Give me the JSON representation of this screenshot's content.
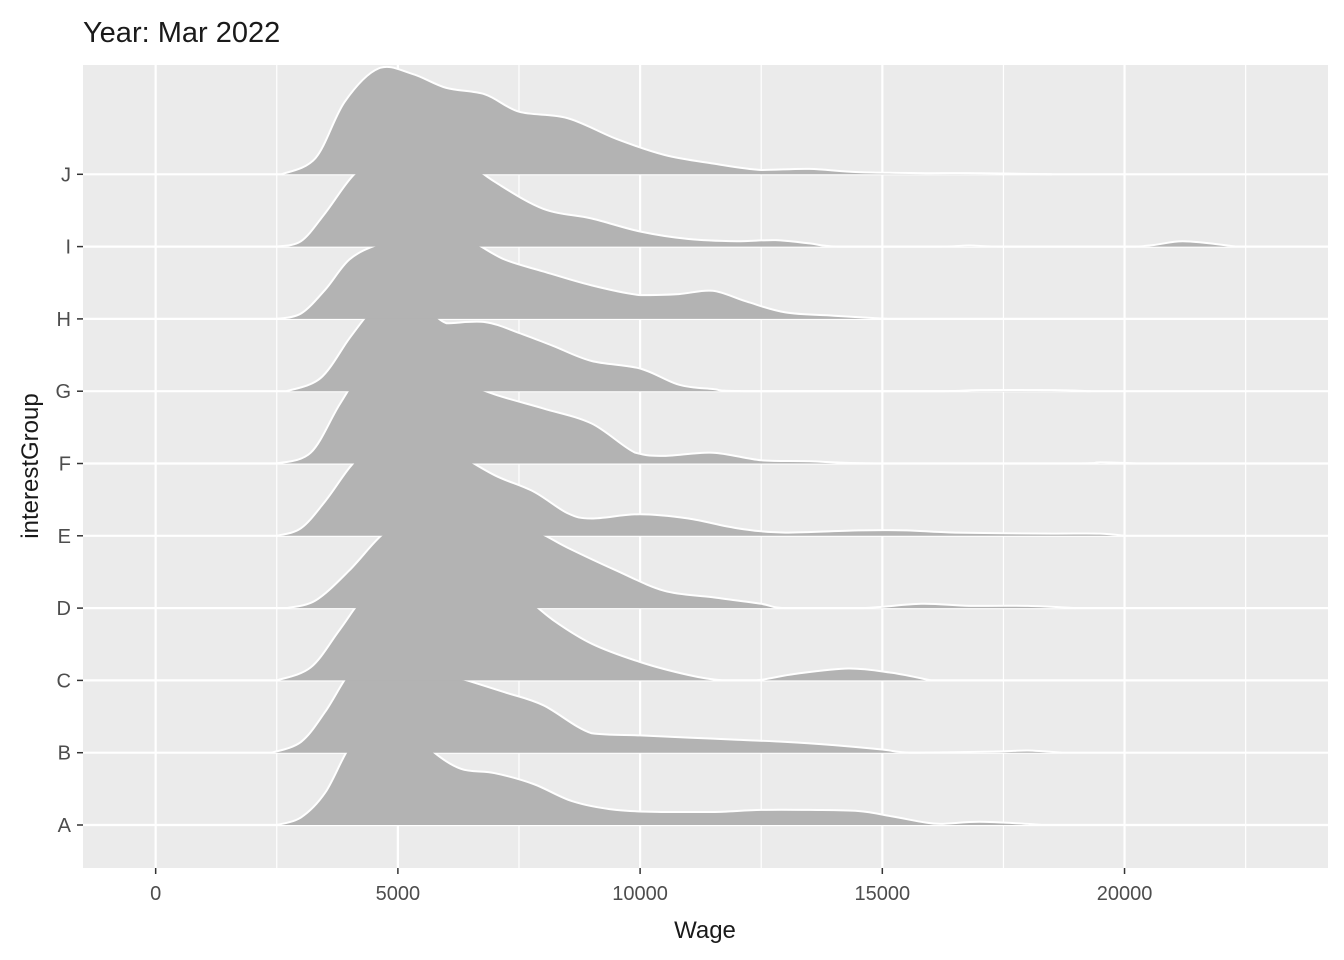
{
  "chart_data": {
    "type": "ridgeline",
    "title": "Year: Mar 2022",
    "xlabel": "Wage",
    "ylabel": "interestGroup",
    "xlim": [
      -1500,
      24200
    ],
    "x_ticks": [
      0,
      5000,
      10000,
      15000,
      20000
    ],
    "x_tick_labels": [
      "0",
      "5000",
      "10000",
      "15000",
      "20000"
    ],
    "grid": true,
    "fill_color": "#b3b3b3",
    "outline_color": "#ffffff",
    "panel_color": "#ebebeb",
    "categories": [
      "A",
      "B",
      "C",
      "D",
      "E",
      "F",
      "G",
      "H",
      "I",
      "J"
    ],
    "series": [
      {
        "name": "A",
        "points": [
          [
            2500,
            0
          ],
          [
            3000,
            0.07
          ],
          [
            3500,
            0.3
          ],
          [
            4000,
            0.72
          ],
          [
            4500,
            0.95
          ],
          [
            4800,
            1.0
          ],
          [
            5200,
            0.94
          ],
          [
            5700,
            0.69
          ],
          [
            6300,
            0.52
          ],
          [
            7000,
            0.48
          ],
          [
            7800,
            0.38
          ],
          [
            8600,
            0.22
          ],
          [
            9500,
            0.14
          ],
          [
            10500,
            0.12
          ],
          [
            11500,
            0.12
          ],
          [
            12500,
            0.14
          ],
          [
            13500,
            0.14
          ],
          [
            14500,
            0.13
          ],
          [
            15200,
            0.08
          ],
          [
            15800,
            0.03
          ],
          [
            16200,
            0.01
          ],
          [
            17000,
            0.03
          ],
          [
            18000,
            0.01
          ],
          [
            18300,
            0
          ]
        ]
      },
      {
        "name": "B",
        "points": [
          [
            2400,
            0
          ],
          [
            3000,
            0.1
          ],
          [
            3500,
            0.38
          ],
          [
            4000,
            0.74
          ],
          [
            4500,
            0.97
          ],
          [
            4800,
            1.0
          ],
          [
            5200,
            0.94
          ],
          [
            5800,
            0.76
          ],
          [
            6500,
            0.66
          ],
          [
            7200,
            0.56
          ],
          [
            8000,
            0.44
          ],
          [
            9000,
            0.18
          ],
          [
            10000,
            0.16
          ],
          [
            11000,
            0.14
          ],
          [
            12000,
            0.12
          ],
          [
            13000,
            0.1
          ],
          [
            14000,
            0.07
          ],
          [
            15000,
            0.03
          ],
          [
            15600,
            0
          ],
          [
            17300,
            0.01
          ],
          [
            18000,
            0.02
          ],
          [
            18700,
            0
          ]
        ]
      },
      {
        "name": "C",
        "points": [
          [
            2500,
            0
          ],
          [
            3200,
            0.12
          ],
          [
            3800,
            0.47
          ],
          [
            4300,
            0.77
          ],
          [
            4800,
            0.89
          ],
          [
            5500,
            0.89
          ],
          [
            6500,
            0.86
          ],
          [
            7000,
            0.87
          ],
          [
            7500,
            0.81
          ],
          [
            8200,
            0.56
          ],
          [
            9000,
            0.34
          ],
          [
            10000,
            0.17
          ],
          [
            11000,
            0.05
          ],
          [
            11700,
            0
          ],
          [
            12400,
            0
          ],
          [
            13200,
            0.06
          ],
          [
            14300,
            0.11
          ],
          [
            15200,
            0.07
          ],
          [
            16000,
            0
          ]
        ]
      },
      {
        "name": "D",
        "points": [
          [
            2700,
            0
          ],
          [
            3300,
            0.07
          ],
          [
            4000,
            0.35
          ],
          [
            4700,
            0.69
          ],
          [
            5300,
            0.83
          ],
          [
            6000,
            0.79
          ],
          [
            7000,
            0.79
          ],
          [
            7800,
            0.72
          ],
          [
            8500,
            0.56
          ],
          [
            9500,
            0.35
          ],
          [
            10500,
            0.16
          ],
          [
            11500,
            0.1
          ],
          [
            12500,
            0.04
          ],
          [
            13000,
            0
          ],
          [
            14600,
            0
          ],
          [
            15800,
            0.04
          ],
          [
            16800,
            0.02
          ],
          [
            18000,
            0.02
          ],
          [
            19000,
            0
          ]
        ]
      },
      {
        "name": "E",
        "points": [
          [
            2500,
            0
          ],
          [
            3000,
            0.07
          ],
          [
            3500,
            0.32
          ],
          [
            4000,
            0.63
          ],
          [
            4500,
            0.87
          ],
          [
            5000,
            0.97
          ],
          [
            5500,
            0.96
          ],
          [
            6200,
            0.77
          ],
          [
            7000,
            0.56
          ],
          [
            7800,
            0.41
          ],
          [
            8500,
            0.21
          ],
          [
            9000,
            0.16
          ],
          [
            10000,
            0.2
          ],
          [
            11000,
            0.16
          ],
          [
            12000,
            0.07
          ],
          [
            13000,
            0.03
          ],
          [
            14500,
            0.05
          ],
          [
            15500,
            0.05
          ],
          [
            16500,
            0.03
          ],
          [
            18500,
            0.02
          ],
          [
            19500,
            0.02
          ],
          [
            20000,
            0
          ]
        ]
      },
      {
        "name": "F",
        "points": [
          [
            2500,
            0
          ],
          [
            3200,
            0.1
          ],
          [
            3800,
            0.55
          ],
          [
            4400,
            0.95
          ],
          [
            4800,
            0.98
          ],
          [
            5200,
            0.94
          ],
          [
            6000,
            0.81
          ],
          [
            7000,
            0.64
          ],
          [
            8000,
            0.51
          ],
          [
            9000,
            0.37
          ],
          [
            9900,
            0.1
          ],
          [
            10500,
            0.07
          ],
          [
            11500,
            0.1
          ],
          [
            12500,
            0.03
          ],
          [
            13500,
            0.02
          ],
          [
            14900,
            0
          ],
          [
            18900,
            0
          ],
          [
            19500,
            0.01
          ],
          [
            20300,
            0
          ]
        ]
      },
      {
        "name": "G",
        "points": [
          [
            2700,
            0
          ],
          [
            3400,
            0.12
          ],
          [
            4000,
            0.49
          ],
          [
            4500,
            0.78
          ],
          [
            4800,
            0.9
          ],
          [
            5400,
            0.86
          ],
          [
            6000,
            0.63
          ],
          [
            6800,
            0.64
          ],
          [
            7500,
            0.54
          ],
          [
            8200,
            0.42
          ],
          [
            9000,
            0.28
          ],
          [
            10000,
            0.21
          ],
          [
            10800,
            0.06
          ],
          [
            11500,
            0.02
          ],
          [
            12200,
            0
          ],
          [
            16100,
            0
          ],
          [
            17000,
            0.01
          ],
          [
            18500,
            0.01
          ],
          [
            19300,
            0
          ]
        ]
      },
      {
        "name": "H",
        "points": [
          [
            2500,
            0
          ],
          [
            3000,
            0.05
          ],
          [
            3500,
            0.27
          ],
          [
            4000,
            0.55
          ],
          [
            4600,
            0.69
          ],
          [
            5200,
            0.74
          ],
          [
            5900,
            0.78
          ],
          [
            6500,
            0.72
          ],
          [
            7200,
            0.55
          ],
          [
            8000,
            0.44
          ],
          [
            9000,
            0.31
          ],
          [
            10000,
            0.22
          ],
          [
            10800,
            0.23
          ],
          [
            11500,
            0.26
          ],
          [
            12200,
            0.16
          ],
          [
            13000,
            0.06
          ],
          [
            14000,
            0.03
          ],
          [
            15100,
            0
          ]
        ]
      },
      {
        "name": "I",
        "points": [
          [
            2500,
            0
          ],
          [
            3000,
            0.05
          ],
          [
            3500,
            0.31
          ],
          [
            4100,
            0.67
          ],
          [
            4800,
            0.9
          ],
          [
            5500,
            0.94
          ],
          [
            6200,
            0.85
          ],
          [
            7000,
            0.6
          ],
          [
            8000,
            0.35
          ],
          [
            9000,
            0.26
          ],
          [
            10000,
            0.14
          ],
          [
            11000,
            0.07
          ],
          [
            12000,
            0.05
          ],
          [
            12800,
            0.06
          ],
          [
            13500,
            0.03
          ],
          [
            14100,
            0
          ],
          [
            16200,
            0
          ],
          [
            16800,
            0.01
          ],
          [
            17500,
            0
          ],
          [
            20200,
            0
          ],
          [
            21200,
            0.05
          ],
          [
            22300,
            0
          ]
        ]
      },
      {
        "name": "J",
        "points": [
          [
            2600,
            0
          ],
          [
            3300,
            0.15
          ],
          [
            3900,
            0.67
          ],
          [
            4600,
            0.98
          ],
          [
            5300,
            0.93
          ],
          [
            6000,
            0.8
          ],
          [
            6800,
            0.74
          ],
          [
            7500,
            0.58
          ],
          [
            8500,
            0.52
          ],
          [
            9500,
            0.33
          ],
          [
            10500,
            0.18
          ],
          [
            11500,
            0.1
          ],
          [
            12500,
            0.04
          ],
          [
            13500,
            0.05
          ],
          [
            14500,
            0.02
          ],
          [
            16000,
            0.01
          ],
          [
            17000,
            0.01
          ],
          [
            18500,
            0
          ]
        ]
      }
    ]
  }
}
